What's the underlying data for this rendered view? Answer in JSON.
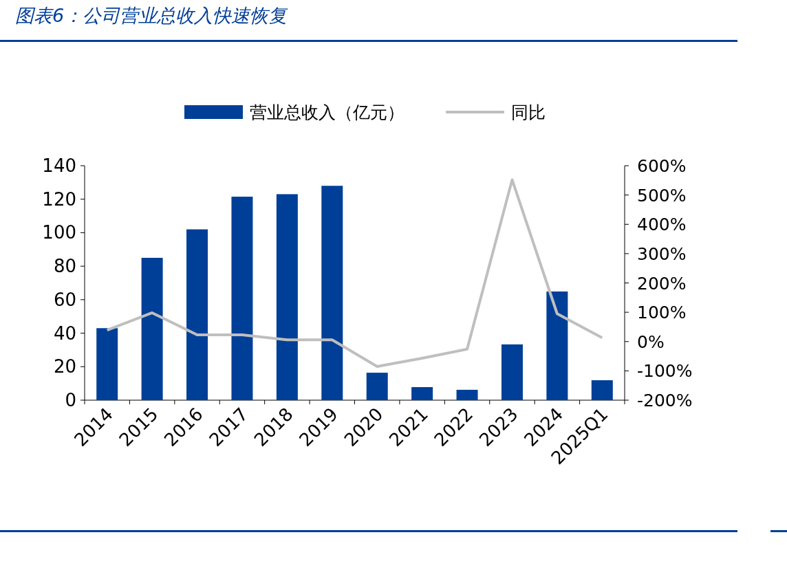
{
  "chart_data": {
    "type": "bar",
    "title": "图表6：公司营业总收入快速恢复",
    "categories": [
      "2014",
      "2015",
      "2016",
      "2017",
      "2018",
      "2019",
      "2020",
      "2021",
      "2022",
      "2023",
      "2024",
      "2025Q1"
    ],
    "series": [
      {
        "name": "营业总收入（亿元）",
        "color": "#003f98",
        "values": [
          43,
          85,
          102,
          121.5,
          123,
          128,
          16.4,
          7.8,
          6.2,
          33.3,
          64.9,
          11.9
        ]
      },
      {
        "name": "同比",
        "type": "line",
        "axis": "y2",
        "color": "#bfbfbf",
        "values": [
          39,
          98,
          23,
          23,
          6,
          6,
          -85,
          -57,
          -26,
          552,
          95,
          13
        ]
      }
    ],
    "ylim": [
      0,
      140
    ],
    "yticks": [
      0,
      20,
      40,
      60,
      80,
      100,
      120,
      140
    ],
    "y2lim": [
      -200,
      600
    ],
    "y2ticks": [
      {
        "value": -200,
        "label": "-200%"
      },
      {
        "value": -100,
        "label": "-100%"
      },
      {
        "value": 0,
        "label": "0%"
      },
      {
        "value": 100,
        "label": "100%"
      },
      {
        "value": 200,
        "label": "200%"
      },
      {
        "value": 300,
        "label": "300%"
      },
      {
        "value": 400,
        "label": "400%"
      },
      {
        "value": 500,
        "label": "500%"
      },
      {
        "value": 600,
        "label": "600%"
      }
    ],
    "legend": "top",
    "grid": false
  }
}
